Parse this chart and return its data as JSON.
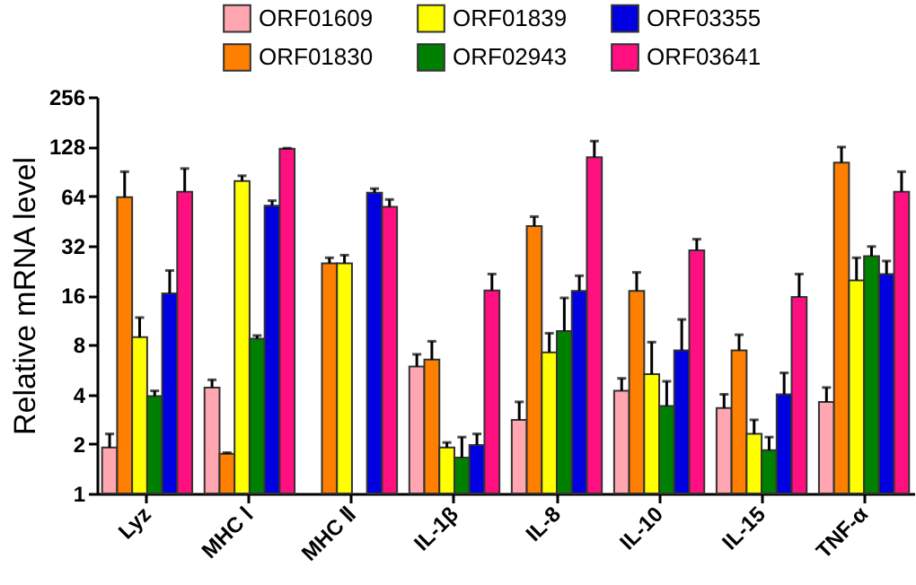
{
  "chart_data": {
    "type": "bar",
    "ylabel": "Relative mRNA level",
    "log": true,
    "ylim": [
      1,
      256
    ],
    "yticks": [
      1,
      2,
      4,
      8,
      16,
      32,
      64,
      128,
      256
    ],
    "grid": false,
    "legend": "top",
    "categories": [
      "Lyz",
      "MHC Ⅰ",
      "MHC Ⅱ",
      "IL-1β",
      "IL-8",
      "IL-10",
      "IL-15",
      "TNF-α"
    ],
    "series": [
      {
        "name": "ORF01609",
        "color": "#ffa6b0",
        "values": [
          1.9,
          4.4,
          null,
          5.9,
          2.8,
          4.2,
          3.3,
          3.6
        ],
        "errors": [
          [
            1.9,
            2.3
          ],
          [
            4.4,
            4.9
          ],
          null,
          [
            5.9,
            7.0
          ],
          [
            2.8,
            3.6
          ],
          [
            4.2,
            5.0
          ],
          [
            3.3,
            4.0
          ],
          [
            3.6,
            4.4
          ]
        ]
      },
      {
        "name": "ORF01830",
        "color": "#ff7f00",
        "values": [
          63,
          1.74,
          25,
          6.5,
          42,
          17,
          7.4,
          102
        ],
        "errors": [
          [
            63,
            90
          ],
          [
            1.74,
            1.77
          ],
          [
            25,
            27
          ],
          [
            6.5,
            8.4
          ],
          [
            42,
            48
          ],
          [
            17,
            22
          ],
          [
            7.4,
            9.2
          ],
          [
            102,
            127
          ]
        ]
      },
      {
        "name": "ORF01839",
        "color": "#ffff00",
        "values": [
          8.9,
          79,
          25,
          1.9,
          7.2,
          5.3,
          2.3,
          19.7
        ],
        "errors": [
          [
            8.9,
            11.7
          ],
          [
            79,
            85
          ],
          [
            25,
            28
          ],
          [
            1.9,
            2.04
          ],
          [
            7.2,
            9.4
          ],
          [
            5.3,
            8.3
          ],
          [
            2.3,
            2.8
          ],
          [
            19.7,
            27
          ]
        ]
      },
      {
        "name": "ORF02943",
        "color": "#008000",
        "values": [
          3.9,
          8.7,
          null,
          1.65,
          9.7,
          3.4,
          1.83,
          27.6
        ],
        "errors": [
          [
            3.9,
            4.2
          ],
          [
            8.7,
            9.1
          ],
          null,
          [
            1.65,
            2.2
          ],
          [
            9.7,
            15.4
          ],
          [
            3.4,
            4.8
          ],
          [
            1.83,
            2.2
          ],
          [
            27.6,
            31.6
          ]
        ]
      },
      {
        "name": "ORF03355",
        "color": "#0000e0",
        "values": [
          16.4,
          56,
          67,
          1.97,
          17,
          7.4,
          4.0,
          21.5
        ],
        "errors": [
          [
            16.4,
            22.6
          ],
          [
            56,
            60
          ],
          [
            67,
            71
          ],
          [
            1.97,
            2.3
          ],
          [
            17,
            21
          ],
          [
            7.4,
            11.4
          ],
          [
            4.0,
            5.4
          ],
          [
            21.5,
            25.8
          ]
        ]
      },
      {
        "name": "ORF03641",
        "color": "#ff0f80",
        "values": [
          68,
          124,
          55,
          17.1,
          110,
          30,
          15.6,
          68
        ],
        "errors": [
          [
            68,
            94
          ],
          [
            124,
            125
          ],
          [
            55,
            61
          ],
          [
            17.1,
            21.5
          ],
          [
            110,
            138
          ],
          [
            30,
            35
          ],
          [
            15.6,
            21.5
          ],
          [
            68,
            90
          ]
        ]
      }
    ]
  }
}
